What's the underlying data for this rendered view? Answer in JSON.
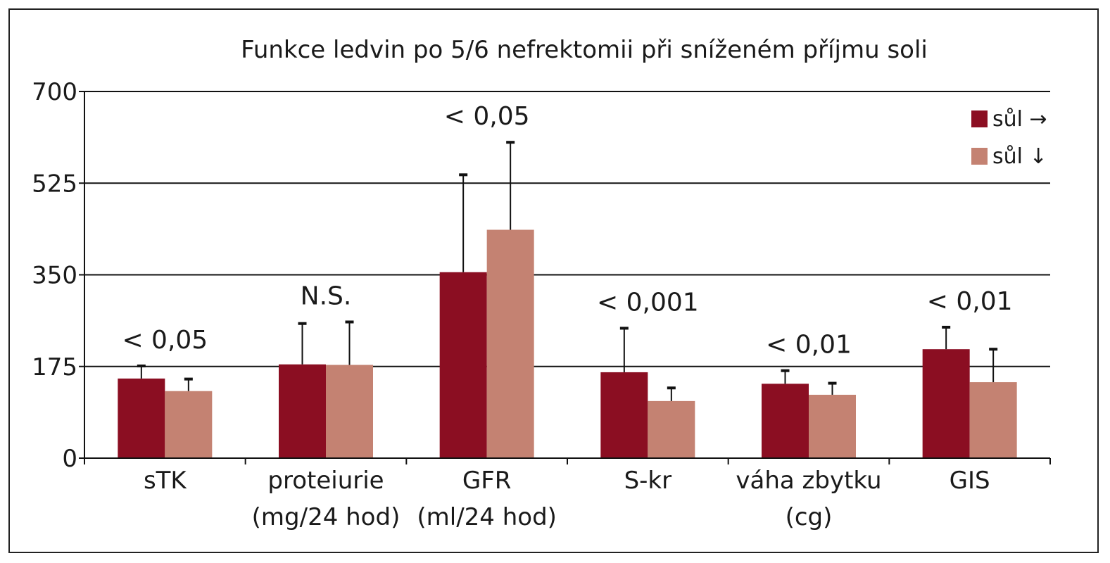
{
  "chart_data": {
    "type": "bar",
    "title": "Funkce ledvin po 5/6 nefrektomii při sníženém příjmu soli",
    "xlabel": "",
    "ylabel": "",
    "ylim": [
      0,
      700
    ],
    "yticks": [
      "0",
      "175",
      "350",
      "525",
      "700"
    ],
    "grid": true,
    "legend_position": "top-right",
    "colors": [
      "#8b0e22",
      "#c48272"
    ],
    "categories": [
      [
        "sTK"
      ],
      [
        "proteiurie",
        "(mg/24 hod)"
      ],
      [
        "GFR",
        "(ml/24 hod)"
      ],
      [
        "S-kr"
      ],
      [
        "váha zbytku",
        "(cg)"
      ],
      [
        "GIS"
      ]
    ],
    "series": [
      {
        "name": "sůl →",
        "values": [
          152,
          179,
          355,
          164,
          142,
          208
        ],
        "errors": [
          24,
          78,
          186,
          84,
          25,
          42
        ]
      },
      {
        "name": "sůl ↓",
        "values": [
          128,
          178,
          436,
          109,
          121,
          145
        ],
        "errors": [
          23,
          82,
          167,
          25,
          22,
          63
        ]
      }
    ],
    "annotations": [
      "< 0,05",
      "N.S.",
      "< 0,05",
      "< 0,001",
      "< 0,01",
      "< 0,01"
    ]
  }
}
